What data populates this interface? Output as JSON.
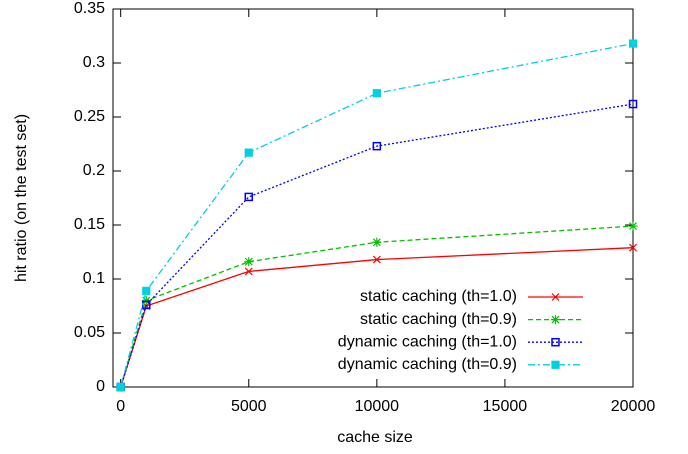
{
  "chart_data": {
    "type": "line",
    "xlabel": "cache size",
    "ylabel": "hit ratio (on the test set)",
    "x": [
      0,
      1000,
      5000,
      10000,
      20000
    ],
    "series": [
      {
        "name": "static caching (th=1.0)",
        "color": "#ff0000",
        "dash": "solid",
        "marker": "x",
        "values": [
          0,
          0.075,
          0.107,
          0.118,
          0.129
        ]
      },
      {
        "name": "static caching (th=0.9)",
        "color": "#00c000",
        "dash": "dashed",
        "marker": "star",
        "values": [
          0,
          0.08,
          0.116,
          0.134,
          0.149
        ]
      },
      {
        "name": "dynamic caching (th=1.0)",
        "color": "#0000ff",
        "dash": "dotted",
        "marker": "square",
        "values": [
          0,
          0.076,
          0.176,
          0.223,
          0.262
        ]
      },
      {
        "name": "dynamic caching (th=0.9)",
        "color": "#00d0e0",
        "dash": "dashdot",
        "marker": "filled-square",
        "values": [
          0,
          0.089,
          0.217,
          0.272,
          0.318
        ]
      }
    ],
    "xlim": [
      -300,
      20000
    ],
    "xticks": [
      0,
      5000,
      10000,
      15000,
      20000
    ],
    "ylim": [
      0,
      0.35
    ],
    "yticks": [
      0,
      0.05,
      0.1,
      0.15,
      0.2,
      0.25,
      0.3,
      0.35
    ],
    "legend": "lower right"
  }
}
